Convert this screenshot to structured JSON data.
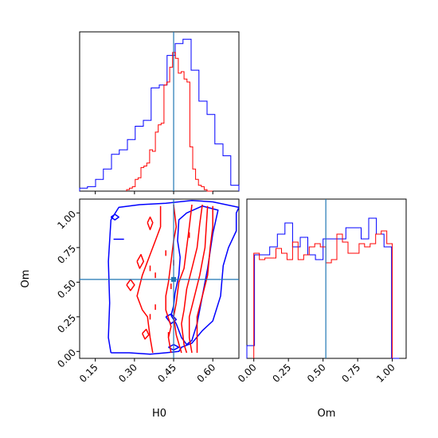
{
  "chart_data": {
    "type": "corner",
    "colors": {
      "blue": "#0000ff",
      "red": "#ff0000",
      "truth": "#1f77b4",
      "axes": "#000000"
    },
    "parameters": [
      {
        "name": "H0",
        "truth": 0.45,
        "range": [
          0.09,
          0.7
        ],
        "ticks": [
          "0.15",
          "0.30",
          "0.45",
          "0.60"
        ]
      },
      {
        "name": "Om",
        "truth": 0.52,
        "range": [
          -0.05,
          1.1
        ],
        "ticks": [
          "0.00",
          "0.25",
          "0.50",
          "0.75",
          "1.00"
        ]
      }
    ],
    "panels": [
      {
        "kind": "hist1d",
        "param": "H0",
        "series": [
          {
            "name": "blue",
            "color": "#0000ff",
            "edges": [
              0.09,
              0.12,
              0.151,
              0.181,
              0.212,
              0.242,
              0.273,
              0.303,
              0.334,
              0.364,
              0.395,
              0.425,
              0.456,
              0.486,
              0.517,
              0.547,
              0.578,
              0.608,
              0.639,
              0.669,
              0.7
            ],
            "counts": [
              0.02,
              0.03,
              0.08,
              0.15,
              0.25,
              0.28,
              0.35,
              0.44,
              0.48,
              0.7,
              0.72,
              0.92,
              1.0,
              1.03,
              0.82,
              0.61,
              0.52,
              0.32,
              0.24,
              0.04
            ]
          },
          {
            "name": "red",
            "color": "#ff0000",
            "edges": [
              0.27,
              0.281,
              0.292,
              0.303,
              0.314,
              0.325,
              0.336,
              0.347,
              0.358,
              0.369,
              0.38,
              0.391,
              0.402,
              0.413,
              0.424,
              0.435,
              0.446,
              0.457,
              0.468,
              0.479,
              0.49,
              0.501,
              0.512,
              0.523,
              0.534,
              0.545,
              0.556,
              0.567,
              0.578,
              0.589,
              0.6
            ],
            "counts": [
              0.01,
              0.02,
              0.03,
              0.08,
              0.09,
              0.16,
              0.17,
              0.19,
              0.28,
              0.27,
              0.4,
              0.45,
              0.46,
              0.72,
              0.74,
              0.84,
              0.94,
              0.9,
              0.8,
              0.81,
              0.76,
              0.74,
              0.3,
              0.15,
              0.08,
              0.04,
              0.03,
              0.01,
              0.0,
              0.0
            ]
          }
        ]
      },
      {
        "kind": "hist1d",
        "param": "Om",
        "series": [
          {
            "name": "blue",
            "color": "#0000ff",
            "edges": [
              -0.05,
              0.005,
              0.06,
              0.115,
              0.17,
              0.225,
              0.28,
              0.335,
              0.39,
              0.445,
              0.5,
              0.555,
              0.61,
              0.665,
              0.72,
              0.775,
              0.83,
              0.885,
              0.94,
              0.995,
              1.05
            ],
            "counts": [
              0.08,
              0.65,
              0.65,
              0.7,
              0.78,
              0.85,
              0.7,
              0.76,
              0.65,
              0.62,
              0.75,
              0.75,
              0.75,
              0.82,
              0.82,
              0.75,
              0.88,
              0.78,
              0.7,
              0.0
            ]
          },
          {
            "name": "red",
            "color": "#ff0000",
            "edges": [
              0.0,
              0.04,
              0.08,
              0.12,
              0.16,
              0.2,
              0.24,
              0.28,
              0.32,
              0.36,
              0.4,
              0.44,
              0.48,
              0.52,
              0.56,
              0.6,
              0.64,
              0.68,
              0.72,
              0.76,
              0.8,
              0.84,
              0.88,
              0.92,
              0.96,
              1.0
            ],
            "counts": [
              0.66,
              0.62,
              0.63,
              0.63,
              0.69,
              0.66,
              0.62,
              0.73,
              0.62,
              0.65,
              0.7,
              0.72,
              0.7,
              0.6,
              0.62,
              0.78,
              0.73,
              0.66,
              0.66,
              0.72,
              0.7,
              0.72,
              0.78,
              0.8,
              0.72
            ]
          }
        ]
      },
      {
        "kind": "contour2d",
        "x": "H0",
        "y": "Om",
        "series": [
          {
            "name": "blue",
            "color": "#0000ff",
            "contours": [
              [
                [
                  0.21,
                  -0.01
                ],
                [
                  0.28,
                  -0.01
                ],
                [
                  0.36,
                  -0.02
                ],
                [
                  0.42,
                  -0.01
                ],
                [
                  0.47,
                  0.0
                ],
                [
                  0.48,
                  0.03
                ],
                [
                  0.52,
                  0.06
                ],
                [
                  0.56,
                  0.15
                ],
                [
                  0.6,
                  0.22
                ],
                [
                  0.63,
                  0.4
                ],
                [
                  0.64,
                  0.62
                ],
                [
                  0.66,
                  0.75
                ],
                [
                  0.69,
                  0.87
                ],
                [
                  0.69,
                  1.0
                ],
                [
                  0.7,
                  1.04
                ],
                [
                  0.6,
                  1.08
                ],
                [
                  0.52,
                  1.09
                ],
                [
                  0.42,
                  1.07
                ],
                [
                  0.32,
                  1.06
                ],
                [
                  0.24,
                  1.04
                ],
                [
                  0.21,
                  0.95
                ],
                [
                  0.2,
                  0.65
                ],
                [
                  0.205,
                  0.35
                ],
                [
                  0.2,
                  0.1
                ],
                [
                  0.21,
                  -0.01
                ]
              ],
              [
                [
                  0.44,
                  0.26
                ],
                [
                  0.46,
                  0.2
                ],
                [
                  0.48,
                  0.1
                ],
                [
                  0.5,
                  0.05
                ],
                [
                  0.52,
                  0.08
                ],
                [
                  0.54,
                  0.2
                ],
                [
                  0.56,
                  0.4
                ],
                [
                  0.58,
                  0.6
                ],
                [
                  0.6,
                  0.85
                ],
                [
                  0.62,
                  1.02
                ],
                [
                  0.56,
                  1.05
                ],
                [
                  0.5,
                  1.0
                ],
                [
                  0.47,
                  0.95
                ],
                [
                  0.465,
                  0.8
                ],
                [
                  0.475,
                  0.68
                ],
                [
                  0.47,
                  0.55
                ],
                [
                  0.455,
                  0.42
                ],
                [
                  0.45,
                  0.33
                ],
                [
                  0.44,
                  0.26
                ]
              ],
              [
                [
                  0.22,
                  0.81
                ],
                [
                  0.26,
                  0.81
                ]
              ],
              [
                [
                  0.21,
                  0.97
                ],
                [
                  0.225,
                  0.99
                ],
                [
                  0.24,
                  0.97
                ],
                [
                  0.225,
                  0.95
                ],
                [
                  0.21,
                  0.97
                ]
              ],
              [
                [
                  0.42,
                  0.25
                ],
                [
                  0.44,
                  0.2
                ],
                [
                  0.46,
                  0.23
                ],
                [
                  0.44,
                  0.27
                ],
                [
                  0.42,
                  0.25
                ]
              ],
              [
                [
                  0.43,
                  0.03
                ],
                [
                  0.45,
                  0.05
                ],
                [
                  0.47,
                  0.03
                ],
                [
                  0.45,
                  0.01
                ],
                [
                  0.43,
                  0.03
                ]
              ]
            ]
          },
          {
            "name": "red",
            "color": "#ff0000",
            "contours": [
              [
                [
                  0.4,
                  1.05
                ],
                [
                  0.4,
                  0.9
                ],
                [
                  0.38,
                  0.8
                ],
                [
                  0.36,
                  0.7
                ],
                [
                  0.33,
                  0.55
                ],
                [
                  0.31,
                  0.4
                ],
                [
                  0.33,
                  0.3
                ],
                [
                  0.35,
                  0.25
                ],
                [
                  0.36,
                  0.1
                ],
                [
                  0.37,
                  -0.01
                ]
              ],
              [
                [
                  0.45,
                  1.06
                ],
                [
                  0.46,
                  0.9
                ],
                [
                  0.45,
                  0.8
                ],
                [
                  0.44,
                  0.65
                ],
                [
                  0.43,
                  0.5
                ],
                [
                  0.42,
                  0.4
                ],
                [
                  0.42,
                  0.3
                ],
                [
                  0.44,
                  0.18
                ],
                [
                  0.43,
                  0.1
                ],
                [
                  0.44,
                  -0.01
                ]
              ],
              [
                [
                  0.52,
                  1.06
                ],
                [
                  0.51,
                  0.9
                ],
                [
                  0.5,
                  0.75
                ],
                [
                  0.49,
                  0.6
                ],
                [
                  0.47,
                  0.5
                ],
                [
                  0.46,
                  0.35
                ],
                [
                  0.45,
                  0.25
                ],
                [
                  0.46,
                  0.12
                ],
                [
                  0.48,
                  -0.01
                ]
              ],
              [
                [
                  0.56,
                  1.06
                ],
                [
                  0.55,
                  0.92
                ],
                [
                  0.54,
                  0.75
                ],
                [
                  0.52,
                  0.6
                ],
                [
                  0.5,
                  0.45
                ],
                [
                  0.49,
                  0.3
                ],
                [
                  0.48,
                  0.2
                ],
                [
                  0.49,
                  0.05
                ],
                [
                  0.5,
                  -0.01
                ]
              ],
              [
                [
                  0.58,
                  1.05
                ],
                [
                  0.575,
                  0.9
                ],
                [
                  0.57,
                  0.75
                ],
                [
                  0.55,
                  0.55
                ],
                [
                  0.53,
                  0.4
                ],
                [
                  0.51,
                  0.25
                ],
                [
                  0.51,
                  0.1
                ],
                [
                  0.52,
                  -0.01
                ]
              ],
              [
                [
                  0.6,
                  1.05
                ],
                [
                  0.6,
                  0.9
                ],
                [
                  0.59,
                  0.75
                ],
                [
                  0.58,
                  0.55
                ],
                [
                  0.56,
                  0.4
                ],
                [
                  0.54,
                  0.25
                ],
                [
                  0.54,
                  0.1
                ],
                [
                  0.54,
                  -0.01
                ]
              ],
              [
                [
                  0.35,
                  0.93
                ],
                [
                  0.36,
                  0.97
                ],
                [
                  0.37,
                  0.93
                ],
                [
                  0.36,
                  0.88
                ],
                [
                  0.35,
                  0.93
                ]
              ],
              [
                [
                  0.31,
                  0.65
                ],
                [
                  0.325,
                  0.7
                ],
                [
                  0.335,
                  0.65
                ],
                [
                  0.32,
                  0.6
                ],
                [
                  0.31,
                  0.65
                ]
              ],
              [
                [
                  0.33,
                  0.13
                ],
                [
                  0.345,
                  0.16
                ],
                [
                  0.355,
                  0.12
                ],
                [
                  0.34,
                  0.09
                ],
                [
                  0.33,
                  0.13
                ]
              ],
              [
                [
                  0.27,
                  0.48
                ],
                [
                  0.285,
                  0.52
                ],
                [
                  0.3,
                  0.48
                ],
                [
                  0.285,
                  0.44
                ],
                [
                  0.27,
                  0.48
                ]
              ],
              [
                [
                  0.36,
                  0.62
                ],
                [
                  0.36,
                  0.58
                ]
              ],
              [
                [
                  0.38,
                  0.57
                ],
                [
                  0.38,
                  0.53
                ]
              ],
              [
                [
                  0.38,
                  0.34
                ],
                [
                  0.38,
                  0.3
                ]
              ],
              [
                [
                  0.42,
                  0.73
                ],
                [
                  0.42,
                  0.69
                ]
              ],
              [
                [
                  0.45,
                  0.66
                ],
                [
                  0.45,
                  0.62
                ]
              ],
              [
                [
                  0.51,
                  0.86
                ],
                [
                  0.51,
                  0.82
                ]
              ],
              [
                [
                  0.44,
                  0.49
                ],
                [
                  0.44,
                  0.45
                ]
              ],
              [
                [
                  0.36,
                  0.27
                ],
                [
                  0.36,
                  0.23
                ]
              ],
              [
                [
                  0.43,
                  0.14
                ],
                [
                  0.43,
                  0.1
                ]
              ]
            ]
          }
        ],
        "truth_point": [
          0.45,
          0.52
        ]
      }
    ]
  }
}
